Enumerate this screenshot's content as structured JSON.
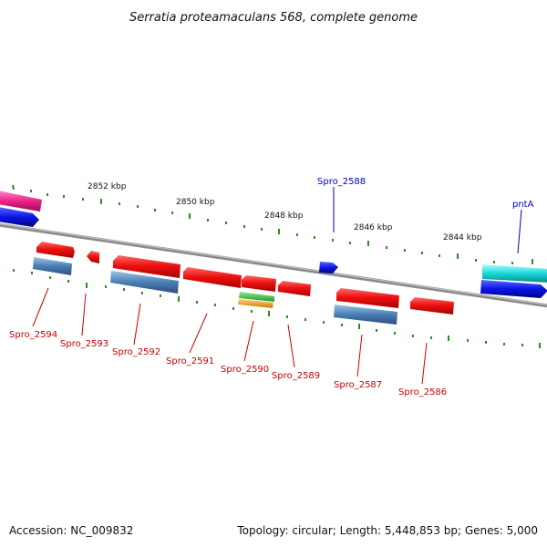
{
  "title": "Serratia proteamaculans 568, complete genome",
  "footer": {
    "accession": "Accession: NC_009832",
    "summary": "Topology: circular; Length: 5,448,853 bp; Genes: 5,000"
  },
  "colors": {
    "backbone": "#8a8a8a",
    "tick": "#2e8b22",
    "red_gene": "#ee1111",
    "steel_gene": "#4a7fb5",
    "blue_gene": "#0a14e6",
    "cyan_gene": "#18d8d8",
    "pink_gene": "#ee2288",
    "green_gene": "#33bb33",
    "orange_gene": "#f0a020",
    "red_label": "#cc0000",
    "blue_label": "#0000cc"
  },
  "kbp_labels": [
    "2852 kbp",
    "2850 kbp",
    "2848 kbp",
    "2846 kbp",
    "2844 kbp"
  ],
  "gene_labels": {
    "red": [
      "Spro_2594",
      "Spro_2593",
      "Spro_2592",
      "Spro_2591",
      "Spro_2590",
      "Spro_2589",
      "Spro_2587",
      "Spro_2586"
    ],
    "blue": [
      "Spro_2588",
      "pntA"
    ]
  }
}
